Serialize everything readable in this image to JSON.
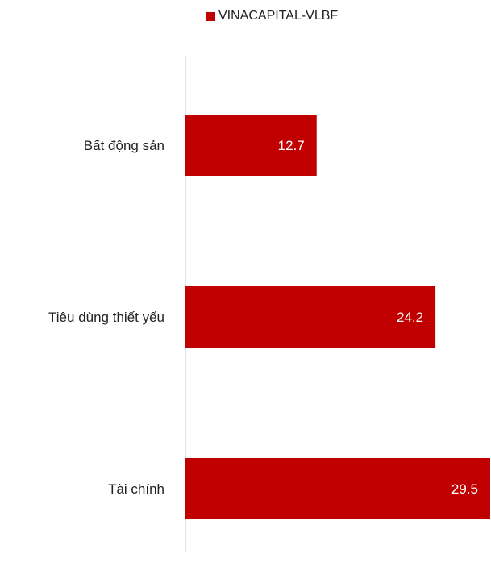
{
  "chart_data": {
    "type": "bar",
    "orientation": "horizontal",
    "categories": [
      "Bất động sản",
      "Tiêu dùng thiết yếu",
      "Tài chính"
    ],
    "series": [
      {
        "name": "VINACAPITAL-VLBF",
        "values": [
          12.7,
          24.2,
          29.5
        ],
        "color": "#c00000"
      }
    ],
    "xlim": [
      0,
      29.5
    ],
    "legend_position": "top",
    "grid": false,
    "data_labels": [
      "12.7",
      "24.2",
      "29.5"
    ]
  }
}
